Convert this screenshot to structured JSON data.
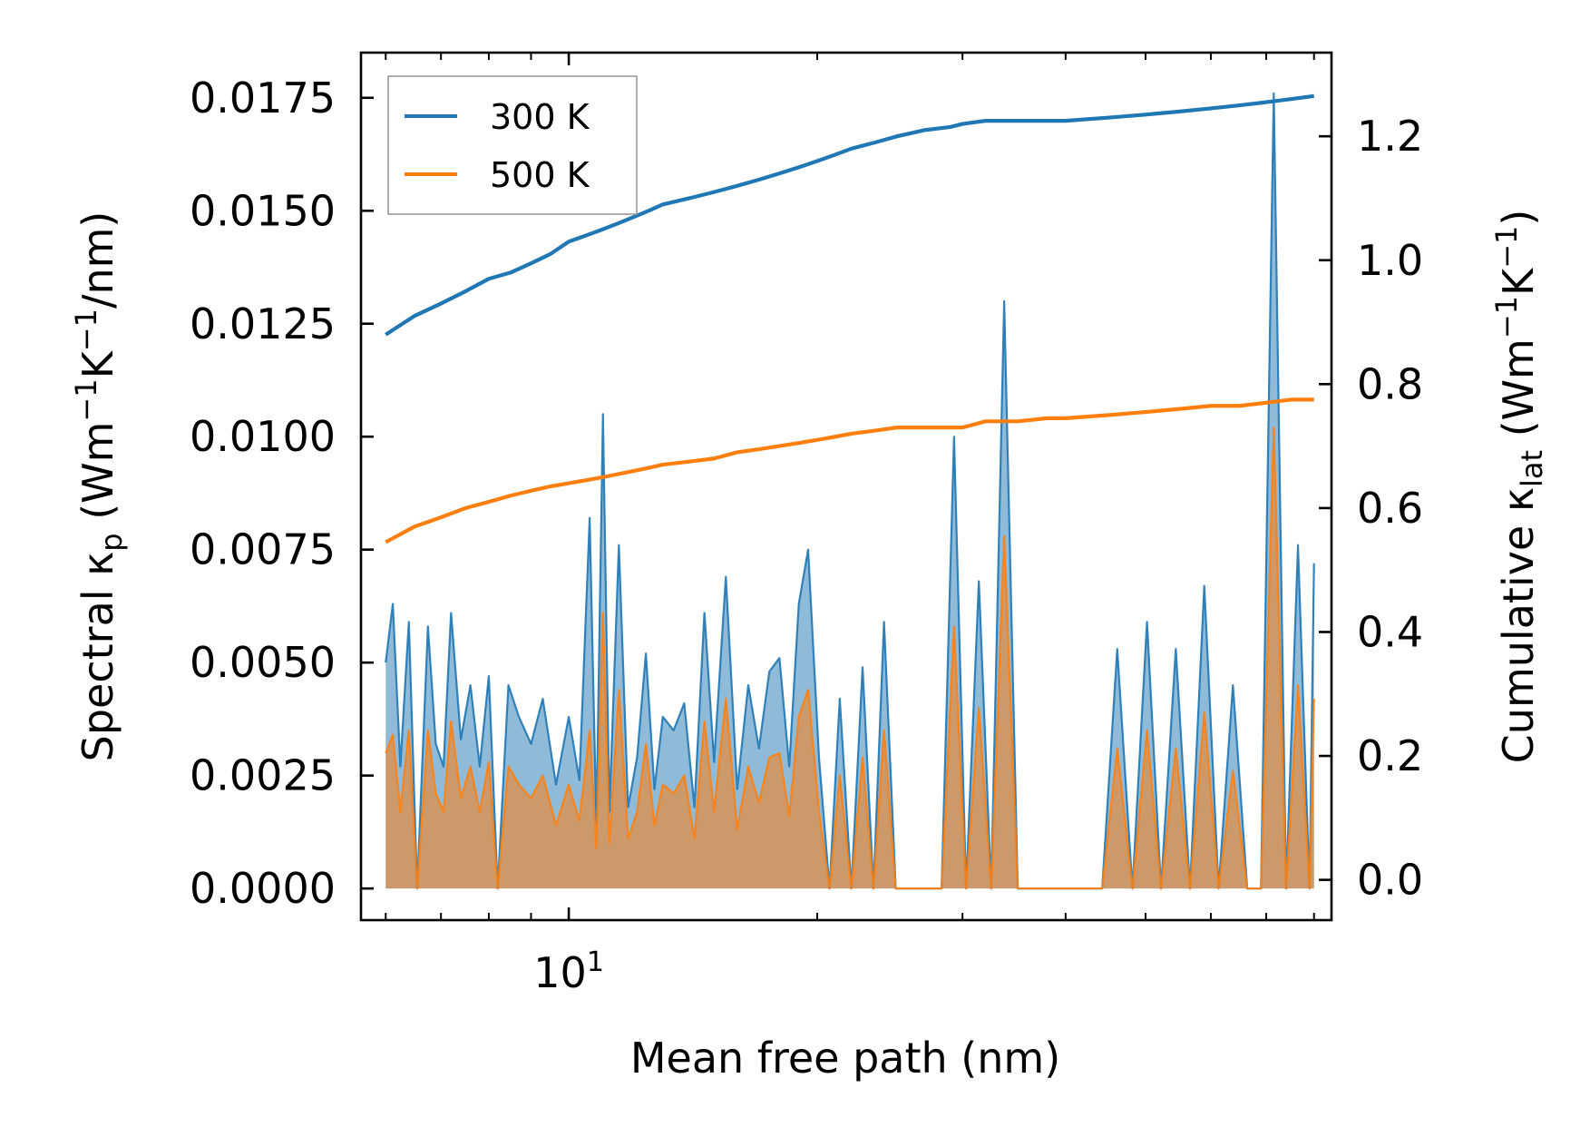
{
  "chart_data": {
    "type": "line",
    "title": "",
    "xlabel": "Mean free path (nm)",
    "ylabel_left": {
      "text": "Spectral κ",
      "sub": "p",
      "units": "(Wm",
      "sup1": "−1",
      "units2": "K",
      "sup2": "−1",
      "units3": "/nm)"
    },
    "ylabel_right": {
      "text": "Cumulative κ",
      "sub": "lat",
      "units": "(Wm",
      "sup1": "−1",
      "units2": "K",
      "sup2": "−1",
      "units3": ")"
    },
    "xscale": "log",
    "xlim": [
      5.6,
      84
    ],
    "x_tick": {
      "base": "10",
      "exp": "1",
      "value": 10
    },
    "ylim_left": [
      -0.0007,
      0.0185
    ],
    "ylim_right": [
      -0.065,
      1.335
    ],
    "yticks_left": [
      "0.0000",
      "0.0025",
      "0.0050",
      "0.0075",
      "0.0100",
      "0.0125",
      "0.0150",
      "0.0175"
    ],
    "yticks_right": [
      "0.0",
      "0.2",
      "0.4",
      "0.6",
      "0.8",
      "1.0",
      "1.2"
    ],
    "legend": [
      {
        "label": "300 K",
        "color": "#1f77b4"
      },
      {
        "label": "500 K",
        "color": "#ff7f0e"
      }
    ],
    "legend_position": "top-left",
    "series": [
      {
        "name": "300 K spectral",
        "axis": "left",
        "color": "#1f77b4",
        "x": [
          6.0,
          6.12,
          6.25,
          6.4,
          6.55,
          6.75,
          6.9,
          7.05,
          7.2,
          7.4,
          7.6,
          7.8,
          8.0,
          8.2,
          8.45,
          8.7,
          9.0,
          9.3,
          9.65,
          10.0,
          10.3,
          10.6,
          10.8,
          11.0,
          11.2,
          11.5,
          11.8,
          12.1,
          12.4,
          12.7,
          13.0,
          13.4,
          13.8,
          14.2,
          14.6,
          15.0,
          15.5,
          16.0,
          16.5,
          17.0,
          17.5,
          18.0,
          18.5,
          19.0,
          19.5,
          20.1,
          20.7,
          21.3,
          22.0,
          22.7,
          23.4,
          24.1,
          24.9,
          25.7,
          26.5,
          27.4,
          28.3,
          29.3,
          30.3,
          31.4,
          32.5,
          33.7,
          35.0,
          36.3,
          37.7,
          39.2,
          40.8,
          42.5,
          44.3,
          46.2,
          48.2,
          50.2,
          52.2,
          54.4,
          56.6,
          58.9,
          61.3,
          63.8,
          66.4,
          69.0,
          71.5,
          74.0,
          76.5,
          79.0,
          80.0
        ],
        "y": [
          0.005,
          0.0063,
          0.0027,
          0.0059,
          0.0,
          0.0058,
          0.0032,
          0.0027,
          0.0061,
          0.0033,
          0.0045,
          0.0027,
          0.0047,
          0.0,
          0.0045,
          0.0038,
          0.0032,
          0.0042,
          0.0023,
          0.0038,
          0.0024,
          0.0082,
          0.0014,
          0.0105,
          0.0017,
          0.0076,
          0.0018,
          0.0029,
          0.0052,
          0.0022,
          0.0038,
          0.0035,
          0.0041,
          0.0018,
          0.0061,
          0.0028,
          0.0069,
          0.0022,
          0.0045,
          0.0031,
          0.0048,
          0.0051,
          0.0027,
          0.0063,
          0.0075,
          0.0029,
          0.0,
          0.0042,
          0.0,
          0.0049,
          0.0,
          0.0059,
          0.0,
          0.0,
          0.0,
          0.0,
          0.0,
          0.01,
          0.0,
          0.0068,
          0.0,
          0.013,
          0.0,
          0.0,
          0.0,
          0.0,
          0.0,
          0.0,
          0.0,
          0.0053,
          0.0,
          0.0059,
          0.0,
          0.0053,
          0.0,
          0.0067,
          0.0,
          0.0045,
          0.0,
          0.0,
          0.0176,
          0.0,
          0.0076,
          0.0,
          0.0072
        ],
        "base_width_nm": 0.16
      },
      {
        "name": "500 K spectral",
        "axis": "left",
        "color": "#ff7f0e",
        "x": [
          6.0,
          6.12,
          6.25,
          6.4,
          6.55,
          6.75,
          6.9,
          7.05,
          7.2,
          7.4,
          7.6,
          7.8,
          8.0,
          8.2,
          8.45,
          8.7,
          9.0,
          9.3,
          9.65,
          10.0,
          10.3,
          10.6,
          10.8,
          11.0,
          11.2,
          11.5,
          11.8,
          12.1,
          12.4,
          12.7,
          13.0,
          13.4,
          13.8,
          14.2,
          14.6,
          15.0,
          15.5,
          16.0,
          16.5,
          17.0,
          17.5,
          18.0,
          18.5,
          19.0,
          19.5,
          20.1,
          20.7,
          21.3,
          22.0,
          22.7,
          23.4,
          24.1,
          24.9,
          25.7,
          26.5,
          27.4,
          28.3,
          29.3,
          30.3,
          31.4,
          32.5,
          33.7,
          35.0,
          36.3,
          37.7,
          39.2,
          40.8,
          42.5,
          44.3,
          46.2,
          48.2,
          50.2,
          52.2,
          54.4,
          56.6,
          58.9,
          61.3,
          63.8,
          66.4,
          69.0,
          71.5,
          74.0,
          76.5,
          79.0,
          80.0
        ],
        "y": [
          0.003,
          0.0034,
          0.0017,
          0.0035,
          0.0,
          0.0035,
          0.0021,
          0.0017,
          0.0037,
          0.002,
          0.0027,
          0.0017,
          0.0028,
          0.0,
          0.0027,
          0.0023,
          0.002,
          0.0025,
          0.0014,
          0.0023,
          0.0015,
          0.0035,
          0.0009,
          0.0061,
          0.001,
          0.0044,
          0.0011,
          0.0017,
          0.0032,
          0.0014,
          0.0023,
          0.0021,
          0.0025,
          0.0011,
          0.0037,
          0.0017,
          0.0042,
          0.0013,
          0.0027,
          0.0019,
          0.0029,
          0.003,
          0.0016,
          0.0038,
          0.0044,
          0.0017,
          0.0,
          0.0025,
          0.0,
          0.0029,
          0.0,
          0.0035,
          0.0,
          0.0,
          0.0,
          0.0,
          0.0,
          0.0058,
          0.0,
          0.004,
          0.0,
          0.0078,
          0.0,
          0.0,
          0.0,
          0.0,
          0.0,
          0.0,
          0.0,
          0.0031,
          0.0,
          0.0035,
          0.0,
          0.0031,
          0.0,
          0.0039,
          0.0,
          0.0026,
          0.0,
          0.0,
          0.0102,
          0.0,
          0.0045,
          0.0,
          0.0042
        ],
        "base_width_nm": 0.16
      },
      {
        "name": "300 K cumulative",
        "axis": "right",
        "color": "#1f77b4",
        "x": [
          6.0,
          6.5,
          7.0,
          7.5,
          8.0,
          8.5,
          9.0,
          9.5,
          10.0,
          10.5,
          11.0,
          11.5,
          12.0,
          12.5,
          13.0,
          14.0,
          15.0,
          16.0,
          17.0,
          18.0,
          19.0,
          20.0,
          21.0,
          22.0,
          23.5,
          25.0,
          27.0,
          29.0,
          30.0,
          32.0,
          35.0,
          38.0,
          40.0,
          45.0,
          50.0,
          55.0,
          60.0,
          65.0,
          70.0,
          75.0,
          80.0
        ],
        "y": [
          0.88,
          0.91,
          0.93,
          0.95,
          0.97,
          0.98,
          0.995,
          1.01,
          1.03,
          1.04,
          1.05,
          1.06,
          1.07,
          1.08,
          1.09,
          1.1,
          1.11,
          1.12,
          1.13,
          1.14,
          1.15,
          1.16,
          1.17,
          1.18,
          1.19,
          1.2,
          1.21,
          1.215,
          1.22,
          1.225,
          1.225,
          1.225,
          1.225,
          1.23,
          1.235,
          1.24,
          1.245,
          1.25,
          1.255,
          1.26,
          1.265
        ]
      },
      {
        "name": "500 K cumulative",
        "axis": "right",
        "color": "#ff7f0e",
        "x": [
          6.0,
          6.5,
          7.0,
          7.5,
          8.0,
          8.5,
          9.0,
          9.5,
          10.0,
          10.5,
          11.0,
          11.5,
          12.0,
          12.5,
          13.0,
          14.0,
          15.0,
          16.0,
          17.0,
          18.0,
          19.0,
          20.0,
          21.0,
          22.0,
          23.5,
          25.0,
          27.0,
          29.0,
          30.0,
          32.0,
          35.0,
          38.0,
          40.0,
          45.0,
          50.0,
          55.0,
          60.0,
          65.0,
          70.0,
          75.0,
          80.0
        ],
        "y": [
          0.545,
          0.57,
          0.585,
          0.6,
          0.61,
          0.62,
          0.628,
          0.635,
          0.64,
          0.645,
          0.65,
          0.655,
          0.66,
          0.665,
          0.67,
          0.675,
          0.68,
          0.69,
          0.695,
          0.7,
          0.705,
          0.71,
          0.715,
          0.72,
          0.725,
          0.73,
          0.73,
          0.73,
          0.73,
          0.74,
          0.74,
          0.745,
          0.745,
          0.75,
          0.755,
          0.76,
          0.765,
          0.765,
          0.77,
          0.775,
          0.775
        ]
      }
    ]
  }
}
